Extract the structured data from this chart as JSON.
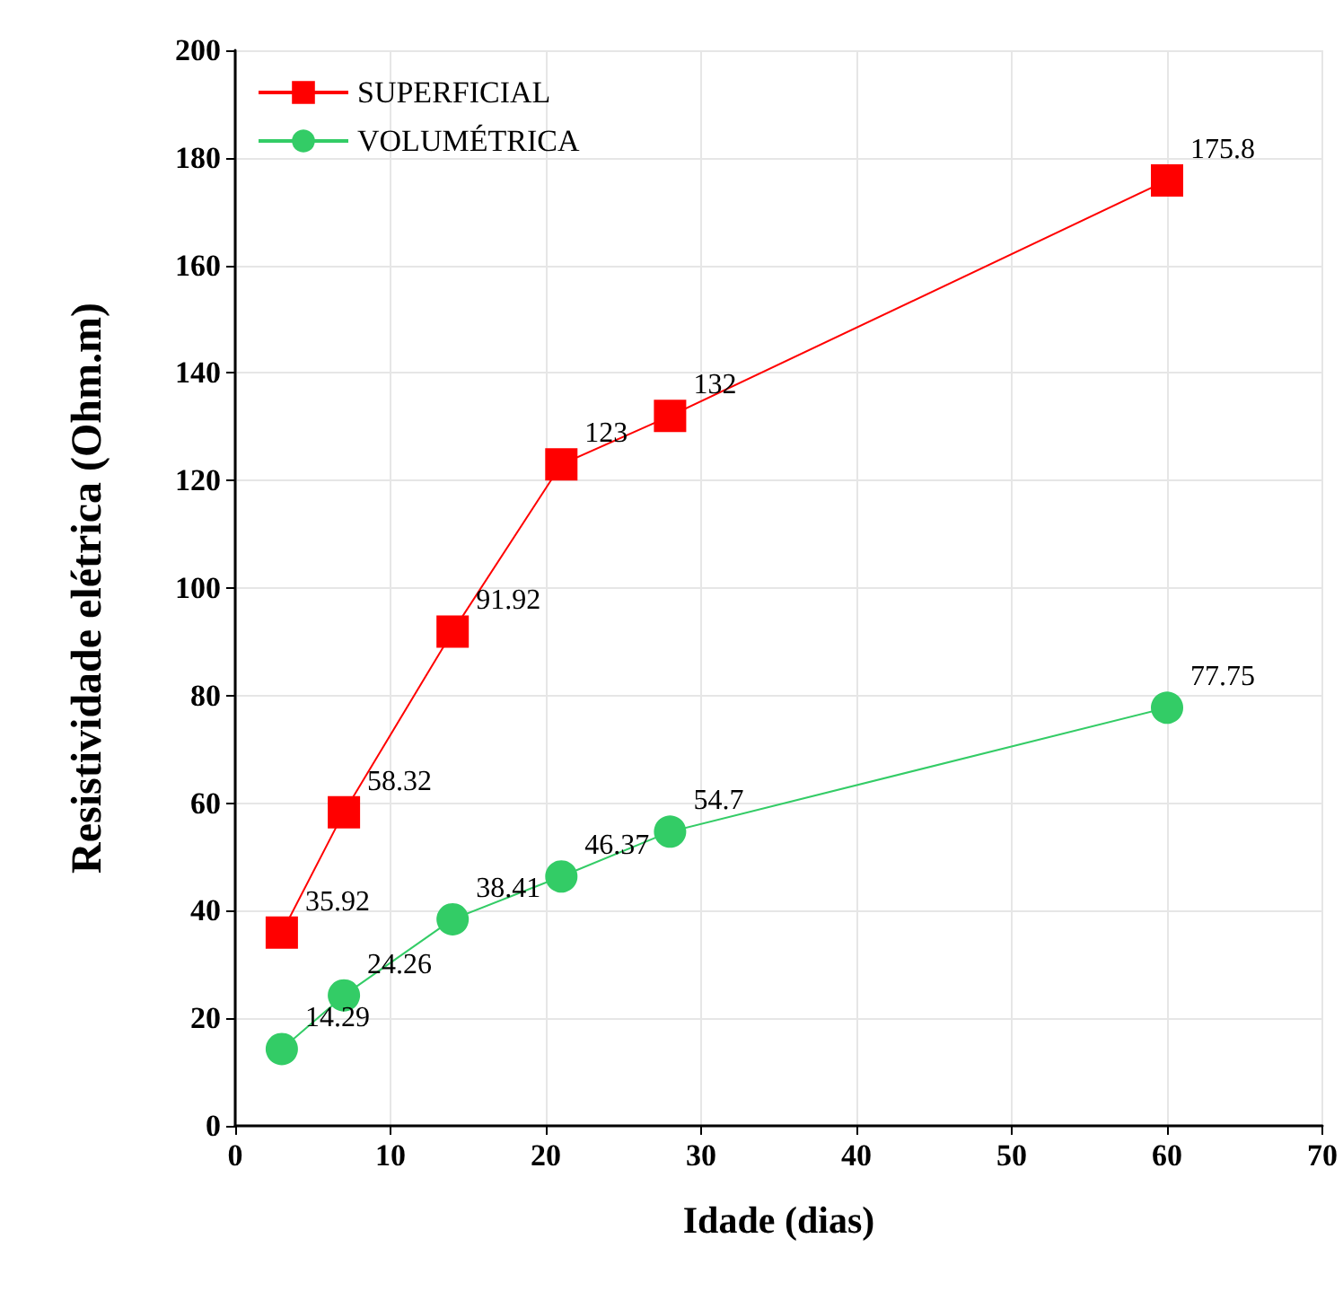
{
  "chart_data": {
    "type": "line",
    "xlabel": "Idade (dias)",
    "ylabel": "Resistividade elétrica (Ohm.m)",
    "xlim": [
      0,
      70
    ],
    "xticks": [
      0,
      10,
      20,
      30,
      40,
      50,
      60,
      70
    ],
    "ylim": [
      0,
      200
    ],
    "yticks": [
      0,
      20,
      40,
      60,
      80,
      100,
      120,
      140,
      160,
      180,
      200
    ],
    "grid": true,
    "legend": "top left",
    "data_labels": true,
    "series": [
      {
        "name": "SUPERFICIAL",
        "color": "#ff0000",
        "marker": "square",
        "x": [
          3,
          7,
          14,
          21,
          28,
          60
        ],
        "values": [
          35.92,
          58.32,
          91.92,
          123,
          132,
          175.8
        ]
      },
      {
        "name": "VOLUMÉTRICA",
        "color": "#33cc66",
        "marker": "circle",
        "x": [
          3,
          7,
          14,
          21,
          28,
          60
        ],
        "values": [
          14.29,
          24.26,
          38.41,
          46.37,
          54.7,
          77.75
        ]
      }
    ]
  }
}
